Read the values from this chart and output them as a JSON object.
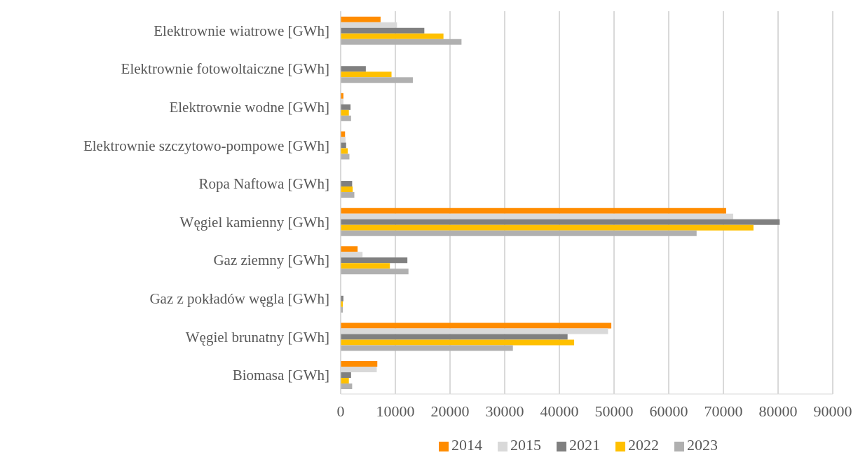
{
  "chart_data": {
    "type": "bar",
    "orientation": "horizontal",
    "categories": [
      "Elektrownie wiatrowe [GWh]",
      "Elektrownie fotowoltaiczne [GWh]",
      "Elektrownie wodne [GWh]",
      "Elektrownie szczytowo-pompowe [GWh]",
      "Ropa Naftowa [GWh]",
      "Węgiel kamienny [GWh]",
      "Gaz ziemny [GWh]",
      "Gaz z pokładów węgla [GWh]",
      "Węgiel brunatny [GWh]",
      "Biomasa [GWh]"
    ],
    "series": [
      {
        "name": "2014",
        "color": "#ff8c00",
        "values": [
          7300,
          null,
          500,
          800,
          null,
          70500,
          3100,
          null,
          49500,
          6700
        ]
      },
      {
        "name": "2015",
        "color": "#d9d9d9",
        "values": [
          10300,
          null,
          500,
          900,
          null,
          71800,
          4000,
          null,
          48900,
          6600
        ]
      },
      {
        "name": "2021",
        "color": "#808080",
        "values": [
          15300,
          4600,
          1800,
          1000,
          2100,
          80300,
          12200,
          500,
          41500,
          1900
        ]
      },
      {
        "name": "2022",
        "color": "#ffc000",
        "values": [
          18800,
          9300,
          1500,
          1300,
          2200,
          75500,
          9000,
          400,
          42700,
          1500
        ]
      },
      {
        "name": "2023",
        "color": "#b0b0b0",
        "values": [
          22100,
          13200,
          1900,
          1600,
          2500,
          65100,
          12400,
          400,
          31500,
          2100
        ]
      }
    ],
    "xlim": [
      0,
      90000
    ],
    "xticks": [
      0,
      10000,
      20000,
      30000,
      40000,
      50000,
      60000,
      70000,
      80000,
      90000
    ],
    "grid": "x",
    "legend": "bottom"
  }
}
